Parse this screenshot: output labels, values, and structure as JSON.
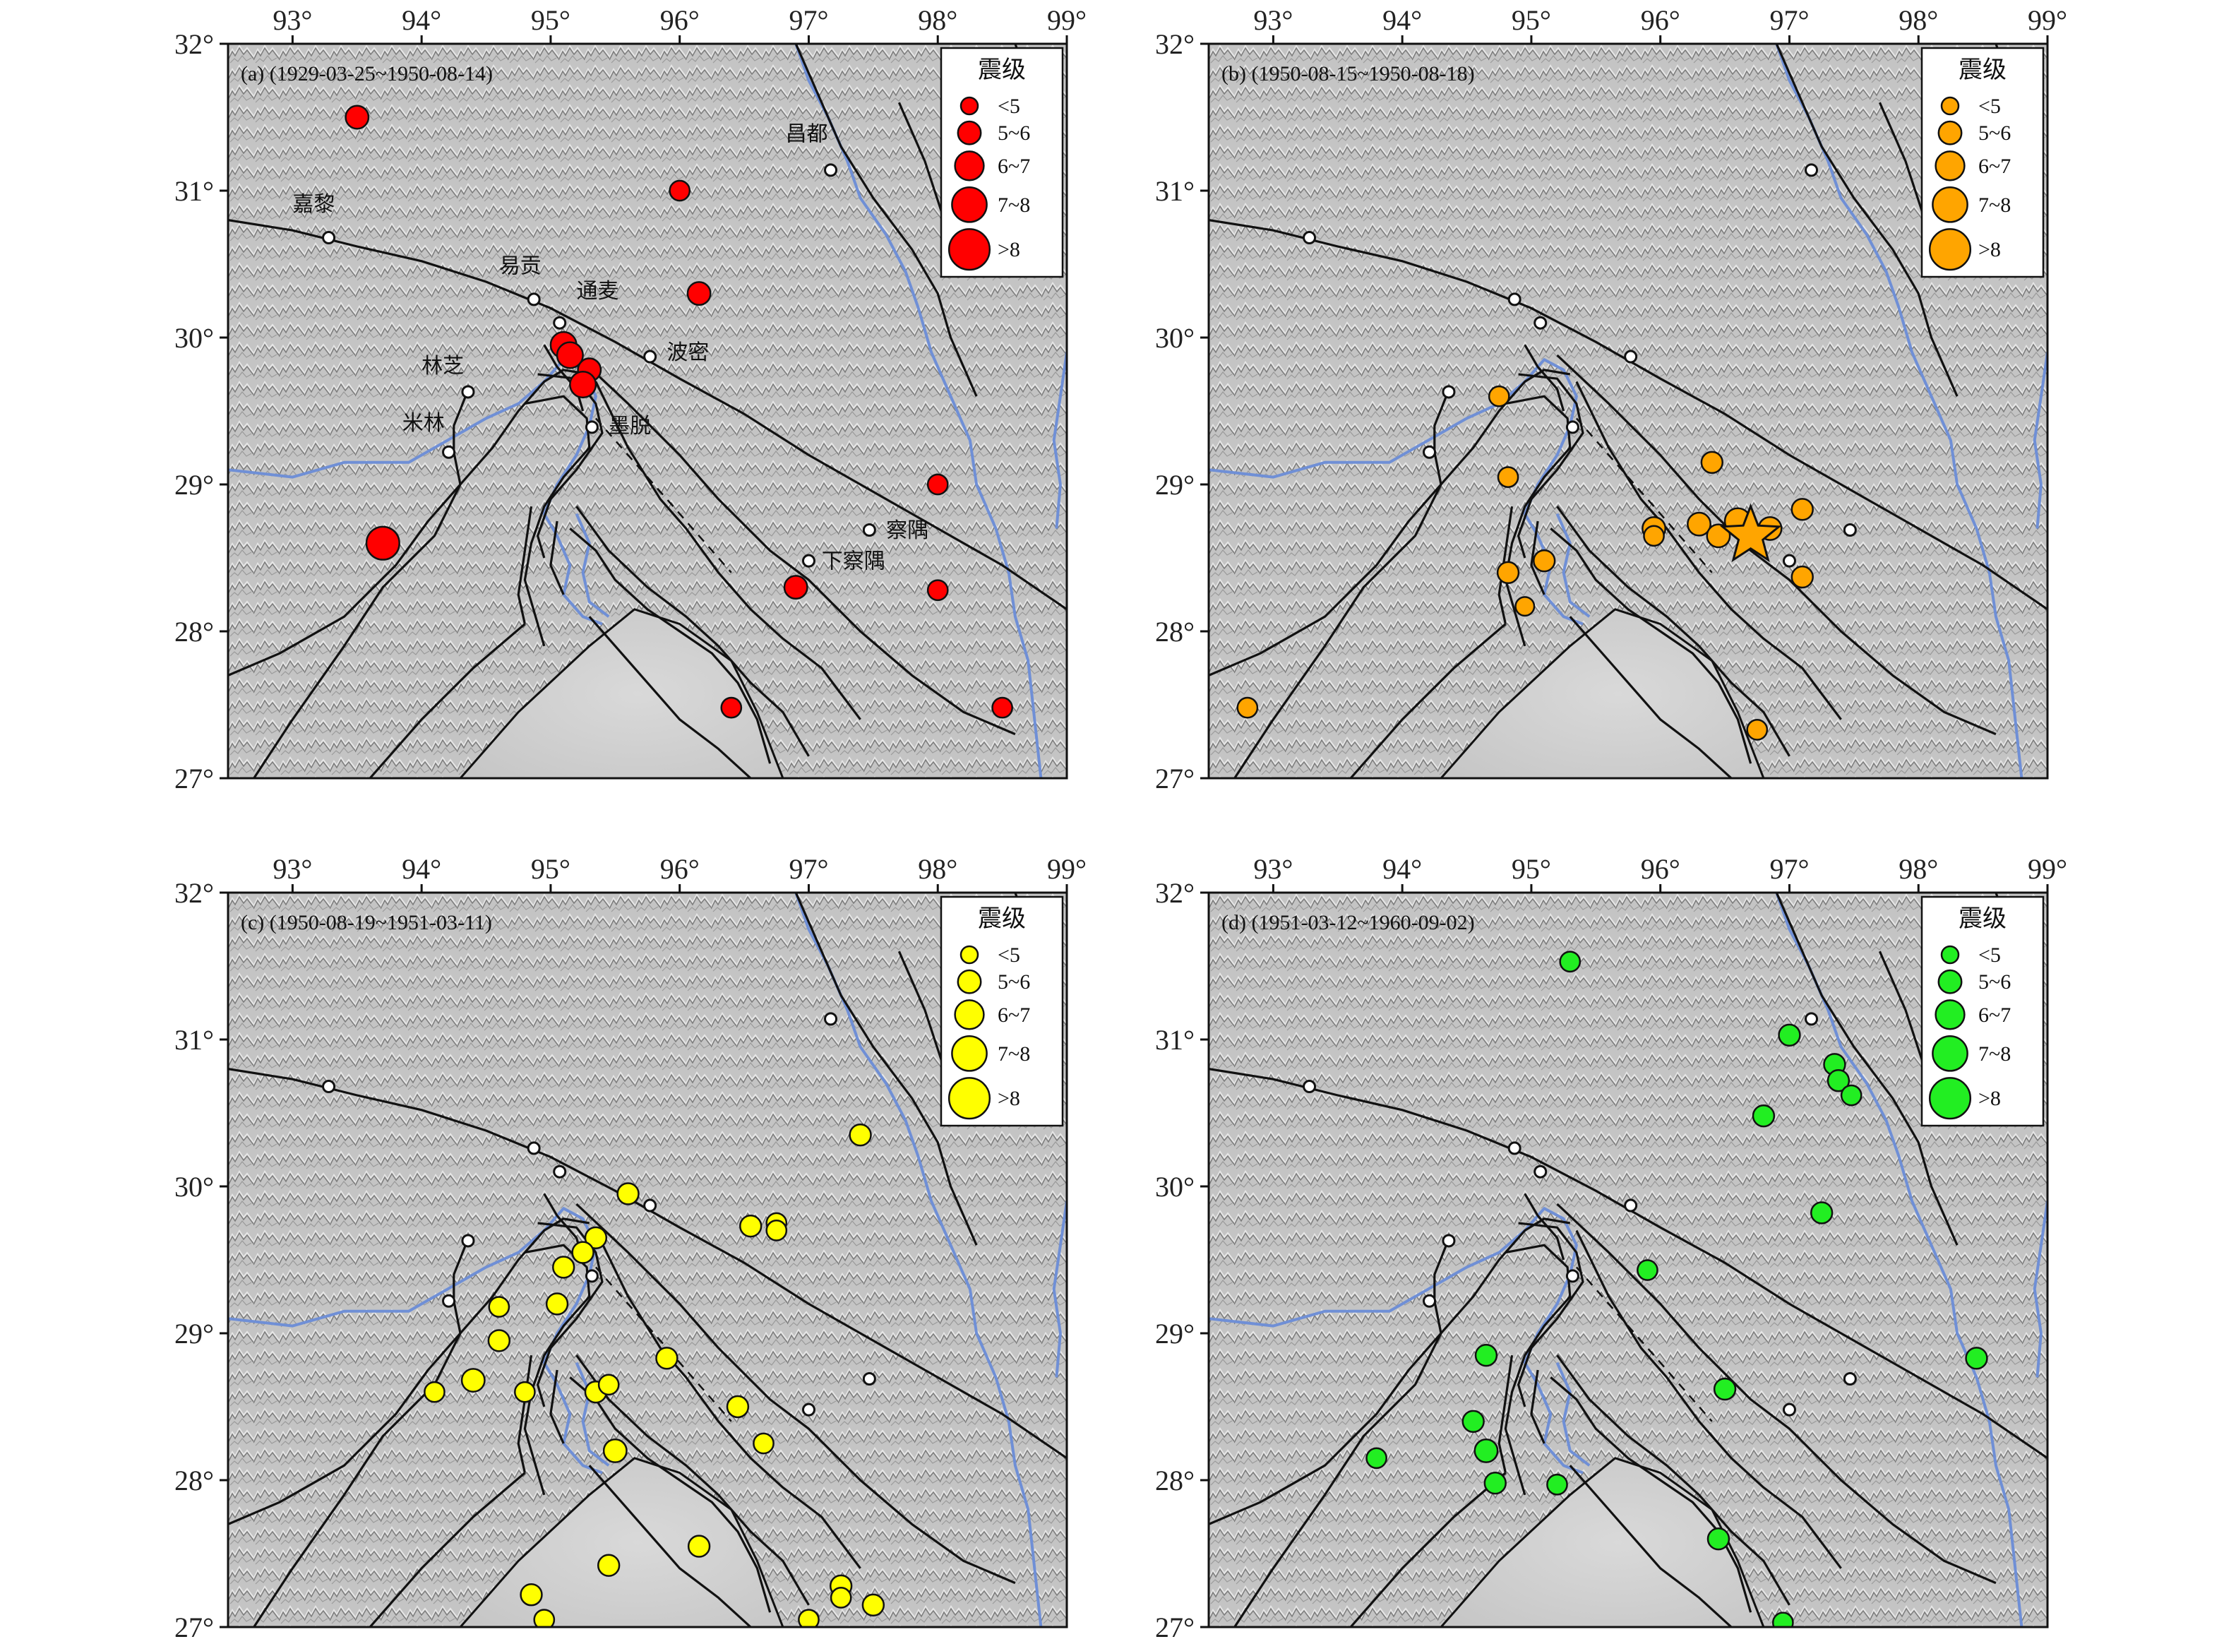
{
  "extent": {
    "lon_min": 92.5,
    "lon_max": 99,
    "lat_min": 27,
    "lat_max": 32
  },
  "lon_ticks": [
    {
      "v": 93,
      "label": "93°"
    },
    {
      "v": 94,
      "label": "94°"
    },
    {
      "v": 95,
      "label": "95°"
    },
    {
      "v": 96,
      "label": "96°"
    },
    {
      "v": 97,
      "label": "97°"
    },
    {
      "v": 98,
      "label": "98°"
    },
    {
      "v": 99,
      "label": "99°"
    }
  ],
  "lat_ticks": [
    {
      "v": 27,
      "label": "27°"
    },
    {
      "v": 28,
      "label": "28°"
    },
    {
      "v": 29,
      "label": "29°"
    },
    {
      "v": 30,
      "label": "30°"
    },
    {
      "v": 31,
      "label": "31°"
    },
    {
      "v": 32,
      "label": "32°"
    }
  ],
  "legend": {
    "title": "震级",
    "classes": [
      {
        "label": "<5",
        "mag": 4.5
      },
      {
        "label": "5~6",
        "mag": 5.5
      },
      {
        "label": "6~7",
        "mag": 6.5
      },
      {
        "label": "7~8",
        "mag": 7.5
      },
      {
        "label": ">8",
        "mag": 8.5
      }
    ]
  },
  "cities": [
    {
      "name": "昌都",
      "lon": 97.17,
      "lat": 31.14,
      "lon_label": 96.82,
      "lat_label": 31.34
    },
    {
      "name": "嘉黎",
      "lon": 93.28,
      "lat": 30.68,
      "lon_label": 93.0,
      "lat_label": 30.86
    },
    {
      "name": "易贡",
      "lon": 94.87,
      "lat": 30.26,
      "lon_label": 94.6,
      "lat_label": 30.44
    },
    {
      "name": "通麦",
      "lon": 95.07,
      "lat": 30.1,
      "lon_label": 95.2,
      "lat_label": 30.27
    },
    {
      "name": "波密",
      "lon": 95.77,
      "lat": 29.87,
      "lon_label": 95.9,
      "lat_label": 29.85
    },
    {
      "name": "林芝",
      "lon": 94.36,
      "lat": 29.63,
      "lon_label": 94.0,
      "lat_label": 29.76
    },
    {
      "name": "米林",
      "lon": 94.21,
      "lat": 29.22,
      "lon_label": 93.85,
      "lat_label": 29.37
    },
    {
      "name": "墨脱",
      "lon": 95.32,
      "lat": 29.39,
      "lon_label": 95.45,
      "lat_label": 29.35
    },
    {
      "name": "察隅",
      "lon": 97.47,
      "lat": 28.69,
      "lon_label": 97.6,
      "lat_label": 28.64
    },
    {
      "name": "下察隅",
      "lon": 97.0,
      "lat": 28.48,
      "lon_label": 97.1,
      "lat_label": 28.43
    }
  ],
  "panels": [
    {
      "id": "a",
      "label": "(a) (1929-03-25~1950-08-14)",
      "color": "#ff0000",
      "show_city_names": true,
      "events": [
        {
          "lon": 93.5,
          "lat": 31.5,
          "mag": 5.5
        },
        {
          "lon": 96.0,
          "lat": 31.0,
          "mag": 5.0
        },
        {
          "lon": 96.15,
          "lat": 30.3,
          "mag": 5.5
        },
        {
          "lon": 95.1,
          "lat": 29.95,
          "mag": 6.0
        },
        {
          "lon": 95.15,
          "lat": 29.88,
          "mag": 6.0
        },
        {
          "lon": 95.3,
          "lat": 29.78,
          "mag": 5.5
        },
        {
          "lon": 95.25,
          "lat": 29.68,
          "mag": 6.0
        },
        {
          "lon": 98.0,
          "lat": 29.0,
          "mag": 5.0
        },
        {
          "lon": 93.7,
          "lat": 28.6,
          "mag": 7.2
        },
        {
          "lon": 96.9,
          "lat": 28.3,
          "mag": 5.5
        },
        {
          "lon": 98.0,
          "lat": 28.28,
          "mag": 5.0
        },
        {
          "lon": 96.4,
          "lat": 27.48,
          "mag": 5.0
        },
        {
          "lon": 98.5,
          "lat": 27.48,
          "mag": 5.0
        }
      ]
    },
    {
      "id": "b",
      "label": "(b) (1950-08-15~1950-08-18)",
      "color": "#ffa500",
      "show_city_names": false,
      "star": {
        "lon": 96.7,
        "lat": 28.65
      },
      "events": [
        {
          "lon": 94.75,
          "lat": 29.6,
          "mag": 5.0
        },
        {
          "lon": 94.82,
          "lat": 29.05,
          "mag": 5.0
        },
        {
          "lon": 96.4,
          "lat": 29.15,
          "mag": 5.2
        },
        {
          "lon": 95.95,
          "lat": 28.7,
          "mag": 5.5
        },
        {
          "lon": 95.95,
          "lat": 28.65,
          "mag": 5.0
        },
        {
          "lon": 96.3,
          "lat": 28.73,
          "mag": 5.5
        },
        {
          "lon": 96.45,
          "lat": 28.65,
          "mag": 5.5
        },
        {
          "lon": 96.6,
          "lat": 28.75,
          "mag": 6.0
        },
        {
          "lon": 96.85,
          "lat": 28.7,
          "mag": 5.5
        },
        {
          "lon": 97.1,
          "lat": 28.83,
          "mag": 5.2
        },
        {
          "lon": 97.1,
          "lat": 28.37,
          "mag": 5.2
        },
        {
          "lon": 94.82,
          "lat": 28.4,
          "mag": 5.2
        },
        {
          "lon": 95.1,
          "lat": 28.48,
          "mag": 5.2
        },
        {
          "lon": 94.95,
          "lat": 28.17,
          "mag": 4.8
        },
        {
          "lon": 92.8,
          "lat": 27.48,
          "mag": 5.0
        },
        {
          "lon": 96.75,
          "lat": 27.33,
          "mag": 5.0
        }
      ]
    },
    {
      "id": "c",
      "label": "(c) (1950-08-19~1951-03-11)",
      "color": "#ffff00",
      "show_city_names": false,
      "events": [
        {
          "lon": 97.4,
          "lat": 30.35,
          "mag": 5.2
        },
        {
          "lon": 95.6,
          "lat": 29.95,
          "mag": 5.2
        },
        {
          "lon": 96.55,
          "lat": 29.73,
          "mag": 5.2
        },
        {
          "lon": 96.75,
          "lat": 29.75,
          "mag": 5.0
        },
        {
          "lon": 96.75,
          "lat": 29.7,
          "mag": 5.0
        },
        {
          "lon": 95.35,
          "lat": 29.65,
          "mag": 5.2
        },
        {
          "lon": 95.25,
          "lat": 29.55,
          "mag": 5.2
        },
        {
          "lon": 95.1,
          "lat": 29.45,
          "mag": 5.2
        },
        {
          "lon": 94.6,
          "lat": 29.18,
          "mag": 5.0
        },
        {
          "lon": 95.05,
          "lat": 29.2,
          "mag": 5.2
        },
        {
          "lon": 94.6,
          "lat": 28.95,
          "mag": 5.2
        },
        {
          "lon": 95.9,
          "lat": 28.83,
          "mag": 5.2
        },
        {
          "lon": 94.1,
          "lat": 28.6,
          "mag": 5.0
        },
        {
          "lon": 94.4,
          "lat": 28.68,
          "mag": 5.5
        },
        {
          "lon": 94.8,
          "lat": 28.6,
          "mag": 5.0
        },
        {
          "lon": 95.35,
          "lat": 28.6,
          "mag": 5.2
        },
        {
          "lon": 95.45,
          "lat": 28.65,
          "mag": 5.0
        },
        {
          "lon": 96.45,
          "lat": 28.5,
          "mag": 5.2
        },
        {
          "lon": 96.65,
          "lat": 28.25,
          "mag": 5.0
        },
        {
          "lon": 95.5,
          "lat": 28.2,
          "mag": 5.5
        },
        {
          "lon": 96.15,
          "lat": 27.55,
          "mag": 5.2
        },
        {
          "lon": 95.45,
          "lat": 27.42,
          "mag": 5.2
        },
        {
          "lon": 94.85,
          "lat": 27.22,
          "mag": 5.2
        },
        {
          "lon": 94.95,
          "lat": 27.05,
          "mag": 5.0
        },
        {
          "lon": 97.25,
          "lat": 27.28,
          "mag": 5.2
        },
        {
          "lon": 97.25,
          "lat": 27.2,
          "mag": 5.0
        },
        {
          "lon": 97.5,
          "lat": 27.15,
          "mag": 5.2
        },
        {
          "lon": 97.0,
          "lat": 27.05,
          "mag": 5.0
        }
      ]
    },
    {
      "id": "d",
      "label": "(d) (1951-03-12~1960-09-02)",
      "color": "#22ee22",
      "show_city_names": false,
      "events": [
        {
          "lon": 95.3,
          "lat": 31.53,
          "mag": 5.0
        },
        {
          "lon": 97.0,
          "lat": 31.03,
          "mag": 5.2
        },
        {
          "lon": 97.35,
          "lat": 30.83,
          "mag": 5.2
        },
        {
          "lon": 97.38,
          "lat": 30.72,
          "mag": 5.2
        },
        {
          "lon": 97.48,
          "lat": 30.62,
          "mag": 5.0
        },
        {
          "lon": 96.8,
          "lat": 30.48,
          "mag": 5.2
        },
        {
          "lon": 97.25,
          "lat": 29.82,
          "mag": 5.2
        },
        {
          "lon": 95.9,
          "lat": 29.43,
          "mag": 5.0
        },
        {
          "lon": 94.65,
          "lat": 28.85,
          "mag": 5.2
        },
        {
          "lon": 98.45,
          "lat": 28.83,
          "mag": 5.2
        },
        {
          "lon": 96.5,
          "lat": 28.62,
          "mag": 5.2
        },
        {
          "lon": 94.55,
          "lat": 28.4,
          "mag": 5.2
        },
        {
          "lon": 93.8,
          "lat": 28.15,
          "mag": 5.0
        },
        {
          "lon": 94.65,
          "lat": 28.2,
          "mag": 5.5
        },
        {
          "lon": 94.72,
          "lat": 27.98,
          "mag": 5.2
        },
        {
          "lon": 95.2,
          "lat": 27.97,
          "mag": 5.0
        },
        {
          "lon": 96.45,
          "lat": 27.6,
          "mag": 5.2
        },
        {
          "lon": 96.95,
          "lat": 27.03,
          "mag": 5.0
        }
      ]
    }
  ]
}
